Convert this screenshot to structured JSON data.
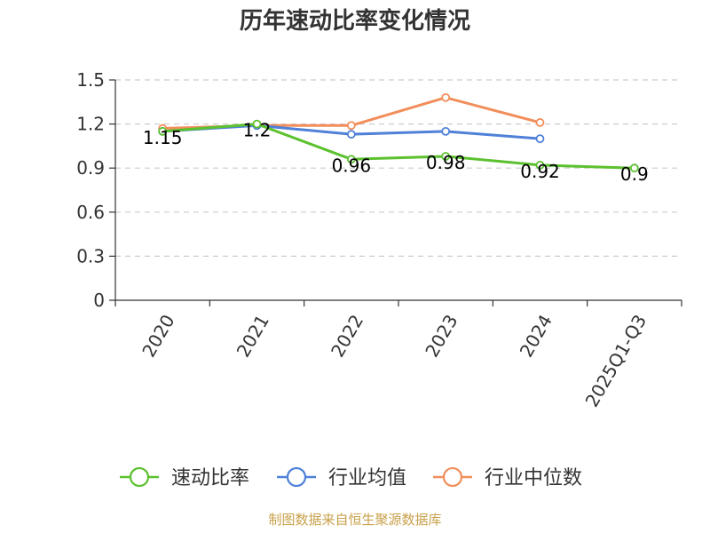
{
  "chart_data": {
    "type": "line",
    "title": "历年速动比率变化情况",
    "categories": [
      "2020",
      "2021",
      "2022",
      "2023",
      "2024",
      "2025Q1-Q3"
    ],
    "ylim": [
      0,
      1.5
    ],
    "yticks": [
      "0",
      "0.3",
      "0.6",
      "0.9",
      "1.2",
      "1.5"
    ],
    "grid": true,
    "legend_position": "bottom",
    "series": [
      {
        "name": "速动比率",
        "color": "#5cc12e",
        "values": [
          1.15,
          1.2,
          0.96,
          0.98,
          0.92,
          0.9
        ],
        "labels": [
          "1.15",
          "1.2",
          "0.96",
          "0.98",
          "0.92",
          "0.9"
        ]
      },
      {
        "name": "行业均值",
        "color": "#4f81d9",
        "values": [
          1.15,
          1.19,
          1.13,
          1.15,
          1.1,
          null
        ]
      },
      {
        "name": "行业中位数",
        "color": "#f28e5b",
        "values": [
          1.17,
          1.19,
          1.19,
          1.38,
          1.21,
          null
        ]
      }
    ],
    "source": "制图数据来自恒生聚源数据库"
  }
}
